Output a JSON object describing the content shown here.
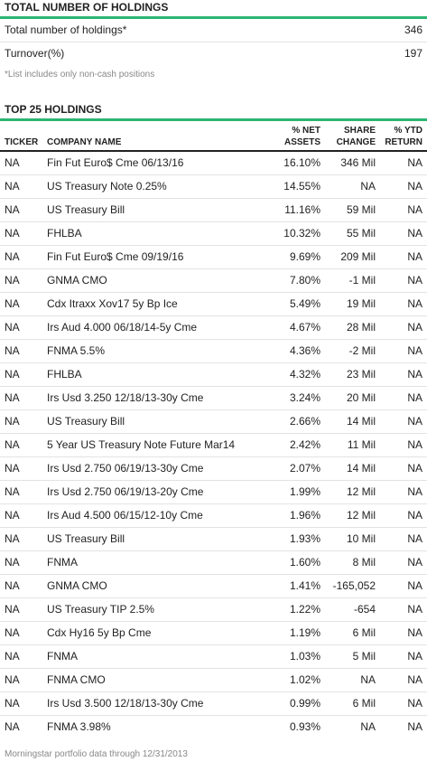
{
  "summary": {
    "title": "TOTAL NUMBER OF HOLDINGS",
    "rows": [
      {
        "label": "Total number of holdings*",
        "value": "346"
      },
      {
        "label": "Turnover(%)",
        "value": "197"
      }
    ],
    "footnote": "*List includes only non-cash positions"
  },
  "holdings": {
    "title": "TOP 25 HOLDINGS",
    "columns": {
      "ticker": "TICKER",
      "company": "COMPANY NAME",
      "net_assets_1": "% NET",
      "net_assets_2": "ASSETS",
      "share_change_1": "SHARE",
      "share_change_2": "CHANGE",
      "ytd_1": "% YTD",
      "ytd_2": "RETURN"
    },
    "rows": [
      {
        "ticker": "NA",
        "company": "Fin Fut Euro$ Cme 06/13/16",
        "net": "16.10%",
        "change": "346 Mil",
        "ytd": "NA"
      },
      {
        "ticker": "NA",
        "company": "US Treasury Note 0.25%",
        "net": "14.55%",
        "change": "NA",
        "ytd": "NA"
      },
      {
        "ticker": "NA",
        "company": "US Treasury Bill",
        "net": "11.16%",
        "change": "59 Mil",
        "ytd": "NA"
      },
      {
        "ticker": "NA",
        "company": "FHLBA",
        "net": "10.32%",
        "change": "55 Mil",
        "ytd": "NA"
      },
      {
        "ticker": "NA",
        "company": "Fin Fut Euro$ Cme 09/19/16",
        "net": "9.69%",
        "change": "209 Mil",
        "ytd": "NA"
      },
      {
        "ticker": "NA",
        "company": "GNMA CMO",
        "net": "7.80%",
        "change": "-1 Mil",
        "ytd": "NA"
      },
      {
        "ticker": "NA",
        "company": "Cdx Itraxx Xov17 5y Bp Ice",
        "net": "5.49%",
        "change": "19 Mil",
        "ytd": "NA"
      },
      {
        "ticker": "NA",
        "company": "Irs Aud 4.000 06/18/14-5y Cme",
        "net": "4.67%",
        "change": "28 Mil",
        "ytd": "NA"
      },
      {
        "ticker": "NA",
        "company": "FNMA 5.5%",
        "net": "4.36%",
        "change": "-2 Mil",
        "ytd": "NA"
      },
      {
        "ticker": "NA",
        "company": "FHLBA",
        "net": "4.32%",
        "change": "23 Mil",
        "ytd": "NA"
      },
      {
        "ticker": "NA",
        "company": "Irs Usd 3.250 12/18/13-30y Cme",
        "net": "3.24%",
        "change": "20 Mil",
        "ytd": "NA"
      },
      {
        "ticker": "NA",
        "company": "US Treasury Bill",
        "net": "2.66%",
        "change": "14 Mil",
        "ytd": "NA"
      },
      {
        "ticker": "NA",
        "company": "5 Year US Treasury Note Future Mar14",
        "net": "2.42%",
        "change": "11 Mil",
        "ytd": "NA"
      },
      {
        "ticker": "NA",
        "company": "Irs Usd 2.750 06/19/13-30y Cme",
        "net": "2.07%",
        "change": "14 Mil",
        "ytd": "NA"
      },
      {
        "ticker": "NA",
        "company": "Irs Usd 2.750 06/19/13-20y Cme",
        "net": "1.99%",
        "change": "12 Mil",
        "ytd": "NA"
      },
      {
        "ticker": "NA",
        "company": "Irs Aud 4.500 06/15/12-10y Cme",
        "net": "1.96%",
        "change": "12 Mil",
        "ytd": "NA"
      },
      {
        "ticker": "NA",
        "company": "US Treasury Bill",
        "net": "1.93%",
        "change": "10 Mil",
        "ytd": "NA"
      },
      {
        "ticker": "NA",
        "company": "FNMA",
        "net": "1.60%",
        "change": "8 Mil",
        "ytd": "NA"
      },
      {
        "ticker": "NA",
        "company": "GNMA CMO",
        "net": "1.41%",
        "change": "-165,052",
        "ytd": "NA"
      },
      {
        "ticker": "NA",
        "company": "US Treasury TIP 2.5%",
        "net": "1.22%",
        "change": "-654",
        "ytd": "NA"
      },
      {
        "ticker": "NA",
        "company": "Cdx Hy16 5y Bp Cme",
        "net": "1.19%",
        "change": "6 Mil",
        "ytd": "NA"
      },
      {
        "ticker": "NA",
        "company": "FNMA",
        "net": "1.03%",
        "change": "5 Mil",
        "ytd": "NA"
      },
      {
        "ticker": "NA",
        "company": "FNMA CMO",
        "net": "1.02%",
        "change": "NA",
        "ytd": "NA"
      },
      {
        "ticker": "NA",
        "company": "Irs Usd 3.500 12/18/13-30y Cme",
        "net": "0.99%",
        "change": "6 Mil",
        "ytd": "NA"
      },
      {
        "ticker": "NA",
        "company": "FNMA 3.98%",
        "net": "0.93%",
        "change": "NA",
        "ytd": "NA"
      }
    ]
  },
  "source": "Morningstar portfolio data through 12/31/2013",
  "colors": {
    "accent": "#2bb673",
    "rule": "#e3e3e3",
    "muted": "#888888"
  }
}
